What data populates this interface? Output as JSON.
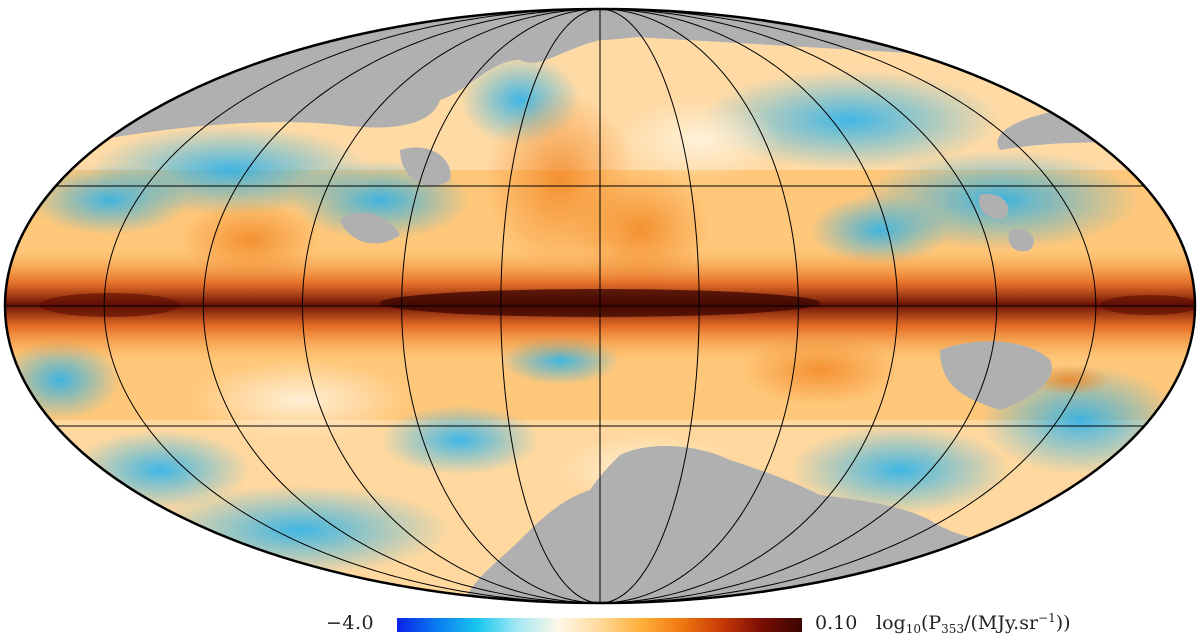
{
  "map": {
    "projection": "mollweide",
    "graticule": {
      "meridians_deg": [
        -180,
        -150,
        -120,
        -90,
        -60,
        -30,
        0,
        30,
        60,
        90,
        120,
        150,
        180
      ],
      "parallels_deg": [
        -30,
        0,
        30
      ]
    },
    "masked_color": "#b0b0b0",
    "outline_color": "#000000"
  },
  "colorbar": {
    "min_label": "−4.0",
    "max_label": "0.10",
    "unit_prefix": "log",
    "unit_log_sub": "10",
    "unit_open": "(P",
    "unit_P_sub": "353",
    "unit_mid": "/(MJy.sr",
    "unit_exp": "−1",
    "unit_close": "))",
    "colors": [
      "#0a22e8",
      "#0a7cf0",
      "#1ac8f0",
      "#a8e8f4",
      "#fff8e8",
      "#ffd99a",
      "#ffb13c",
      "#f07a12",
      "#c93a06",
      "#7a0e04",
      "#3a0603"
    ]
  }
}
